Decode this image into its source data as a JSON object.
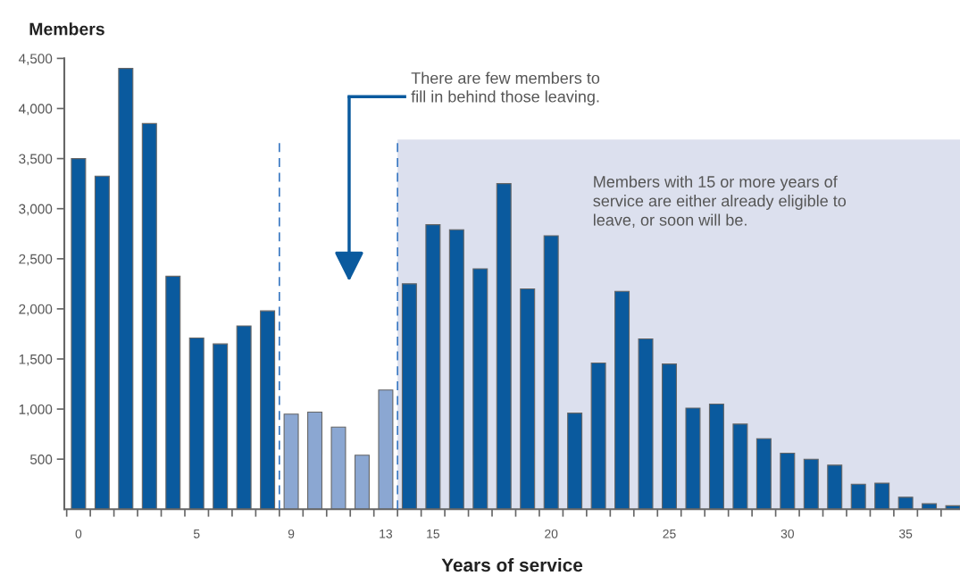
{
  "chart_data": {
    "type": "bar",
    "ylabel": "Members",
    "xlabel": "Years of service",
    "x": [
      0,
      1,
      2,
      3,
      4,
      5,
      6,
      7,
      8,
      9,
      10,
      11,
      12,
      13,
      14,
      15,
      16,
      17,
      18,
      19,
      20,
      21,
      22,
      23,
      24,
      25,
      26,
      27,
      28,
      29,
      30,
      31,
      32,
      33,
      34,
      35,
      36,
      37
    ],
    "values": [
      3500,
      3325,
      4400,
      3850,
      2325,
      1710,
      1650,
      1830,
      1980,
      950,
      970,
      820,
      540,
      1190,
      2250,
      2840,
      2790,
      2400,
      3250,
      2200,
      2730,
      960,
      1460,
      2175,
      1700,
      1450,
      1010,
      1050,
      850,
      705,
      560,
      500,
      440,
      250,
      260,
      120,
      55,
      35
    ],
    "colors": [
      "#0a5a9e",
      "#0a5a9e",
      "#0a5a9e",
      "#0a5a9e",
      "#0a5a9e",
      "#0a5a9e",
      "#0a5a9e",
      "#0a5a9e",
      "#0a5a9e",
      "#8ba7d2",
      "#8ba7d2",
      "#8ba7d2",
      "#8ba7d2",
      "#8ba7d2",
      "#0a5a9e",
      "#0a5a9e",
      "#0a5a9e",
      "#0a5a9e",
      "#0a5a9e",
      "#0a5a9e",
      "#0a5a9e",
      "#0a5a9e",
      "#0a5a9e",
      "#0a5a9e",
      "#0a5a9e",
      "#0a5a9e",
      "#0a5a9e",
      "#0a5a9e",
      "#0a5a9e",
      "#0a5a9e",
      "#0a5a9e",
      "#0a5a9e",
      "#0a5a9e",
      "#0a5a9e",
      "#0a5a9e",
      "#0a5a9e",
      "#0a5a9e",
      "#0a5a9e"
    ],
    "xlim": [
      -0.6,
      37.3
    ],
    "xticks": [
      0,
      5,
      9,
      13,
      15,
      20,
      25,
      30,
      35
    ],
    "ylim": [
      0,
      4500
    ],
    "yticks": [
      {
        "value": 500,
        "label": "500"
      },
      {
        "value": 1000,
        "label": "1,000"
      },
      {
        "value": 1500,
        "label": "1,500"
      },
      {
        "value": 2000,
        "label": "2,000"
      },
      {
        "value": 2500,
        "label": "2,500"
      },
      {
        "value": 3000,
        "label": "3,000"
      },
      {
        "value": 3500,
        "label": "3,500"
      },
      {
        "value": 4000,
        "label": "4,000"
      },
      {
        "value": 4500,
        "label": "4,500"
      }
    ],
    "ref_lines": [
      {
        "axis": "x",
        "value": 8.5,
        "color": "#3a78c2",
        "line_style": "dashed"
      },
      {
        "axis": "x",
        "value": 13.5,
        "color": "#3a78c2",
        "line_style": "dashed"
      }
    ],
    "bands": [
      {
        "axis": "x",
        "from": 13.5,
        "to": 37.3,
        "color": "#dce0ee"
      }
    ],
    "annotations": [
      "There are few members to\nfill in behind those leaving.",
      "Members with 15 or more years of\nservice are either already eligible to\nleave, or soon will be."
    ],
    "grid": false,
    "legend": false
  }
}
